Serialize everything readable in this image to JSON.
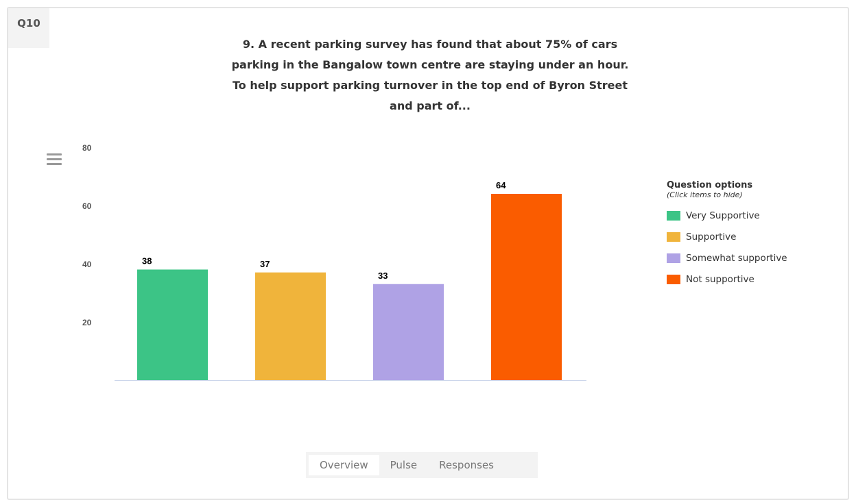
{
  "question_badge": "Q10",
  "title": "9. A recent parking survey has found that about 75% of cars parking in the Bangalow town centre are staying under an hour. To help support parking turnover in the top end of Byron Street and part of...",
  "title_lines": [
    "9. A recent parking survey has found that about 75% of cars",
    "parking in the Bangalow town centre are staying under an hour.",
    "To help support parking turnover in the top end of Byron Street",
    "and part of..."
  ],
  "legend": {
    "title": "Question options",
    "subtitle": "(Click items to hide)"
  },
  "tabs": [
    {
      "label": "Overview",
      "active": true
    },
    {
      "label": "Pulse",
      "active": false
    },
    {
      "label": "Responses",
      "active": false
    }
  ],
  "chart_data": {
    "type": "bar",
    "categories": [
      "Very Supportive",
      "Supportive",
      "Somewhat supportive",
      "Not supportive"
    ],
    "values": [
      38,
      37,
      33,
      64
    ],
    "colors": [
      "#3cc486",
      "#f0b43b",
      "#afa2e5",
      "#fa5c00"
    ],
    "y_ticks": [
      20,
      40,
      60,
      80
    ],
    "ylim": [
      0,
      80
    ],
    "show_data_labels": true,
    "legend_position": "right",
    "grid": false
  }
}
